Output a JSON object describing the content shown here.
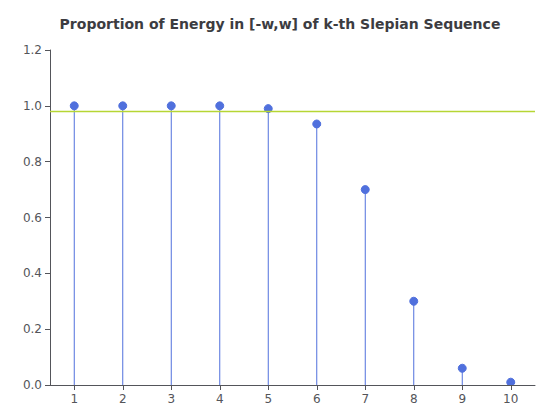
{
  "chart_data": {
    "type": "stem",
    "title": "Proportion of Energy in [-w,w] of k-th Slepian Sequence",
    "x": [
      1,
      2,
      3,
      4,
      5,
      6,
      7,
      8,
      9,
      10
    ],
    "values": [
      1.0,
      1.0,
      1.0,
      1.0,
      0.99,
      0.935,
      0.7,
      0.3,
      0.06,
      0.01
    ],
    "marker": "circle",
    "hline": 0.98,
    "xlim": [
      0.5,
      10.5
    ],
    "ylim": [
      0,
      1.2
    ],
    "xticks": [
      1,
      2,
      3,
      4,
      5,
      6,
      7,
      8,
      9,
      10
    ],
    "yticks": [
      {
        "value": 0,
        "label": "0.0"
      },
      0.2,
      0.4,
      0.6,
      0.8,
      {
        "value": 1.0,
        "label": "1.0"
      },
      1.2
    ],
    "grid": false
  }
}
